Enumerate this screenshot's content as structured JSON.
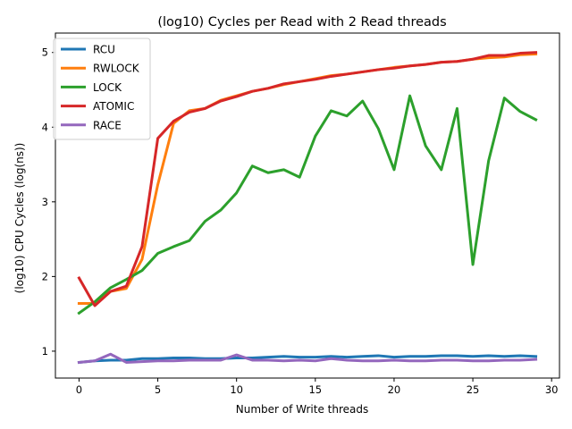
{
  "chart_data": {
    "type": "line",
    "title": "(log10) Cycles per Read with 2 Read threads",
    "xlabel": "Number of Write threads",
    "ylabel": "(log10) CPU Cycles (log(ns))",
    "xlim": [
      -1.5,
      30.5
    ],
    "ylim": [
      0.64,
      5.26
    ],
    "xticks": [
      0,
      5,
      10,
      15,
      20,
      25,
      30
    ],
    "yticks": [
      1,
      2,
      3,
      4,
      5
    ],
    "grid": false,
    "legend_position": "top-left",
    "x": [
      0,
      1,
      2,
      3,
      4,
      5,
      6,
      7,
      8,
      9,
      10,
      11,
      12,
      13,
      14,
      15,
      16,
      17,
      18,
      19,
      20,
      21,
      22,
      23,
      24,
      25,
      26,
      27,
      28,
      29
    ],
    "series": [
      {
        "name": "RCU",
        "color": "#1f77b4",
        "values": [
          0.85,
          0.87,
          0.88,
          0.88,
          0.9,
          0.9,
          0.91,
          0.91,
          0.9,
          0.9,
          0.91,
          0.91,
          0.92,
          0.93,
          0.92,
          0.92,
          0.93,
          0.92,
          0.93,
          0.94,
          0.92,
          0.93,
          0.93,
          0.94,
          0.94,
          0.93,
          0.94,
          0.93,
          0.94,
          0.93
        ]
      },
      {
        "name": "RWLOCK",
        "color": "#ff7f0e",
        "values": [
          1.64,
          1.64,
          1.8,
          1.84,
          2.23,
          3.23,
          4.05,
          4.22,
          4.25,
          4.36,
          4.42,
          4.48,
          4.52,
          4.57,
          4.61,
          4.65,
          4.69,
          4.71,
          4.74,
          4.77,
          4.8,
          4.82,
          4.84,
          4.87,
          4.88,
          4.91,
          4.93,
          4.94,
          4.97,
          4.98
        ]
      },
      {
        "name": "LOCK",
        "color": "#2ca02c",
        "values": [
          1.51,
          1.66,
          1.85,
          1.96,
          2.08,
          2.31,
          2.4,
          2.48,
          2.74,
          2.89,
          3.12,
          3.48,
          3.39,
          3.43,
          3.33,
          3.88,
          4.22,
          4.15,
          4.35,
          3.98,
          3.43,
          4.42,
          3.75,
          3.43,
          4.25,
          2.16,
          3.55,
          4.39,
          4.21,
          4.1
        ]
      },
      {
        "name": "ATOMIC",
        "color": "#d62728",
        "values": [
          1.98,
          1.61,
          1.8,
          1.87,
          2.4,
          3.85,
          4.08,
          4.2,
          4.25,
          4.35,
          4.41,
          4.48,
          4.52,
          4.58,
          4.61,
          4.64,
          4.68,
          4.71,
          4.74,
          4.77,
          4.79,
          4.82,
          4.84,
          4.87,
          4.88,
          4.91,
          4.96,
          4.96,
          4.99,
          5.0
        ]
      },
      {
        "name": "RACE",
        "color": "#9467bd",
        "values": [
          0.85,
          0.87,
          0.96,
          0.85,
          0.86,
          0.87,
          0.87,
          0.88,
          0.88,
          0.88,
          0.95,
          0.88,
          0.88,
          0.87,
          0.88,
          0.87,
          0.9,
          0.88,
          0.87,
          0.87,
          0.88,
          0.87,
          0.87,
          0.88,
          0.88,
          0.87,
          0.87,
          0.88,
          0.88,
          0.89
        ]
      }
    ]
  }
}
